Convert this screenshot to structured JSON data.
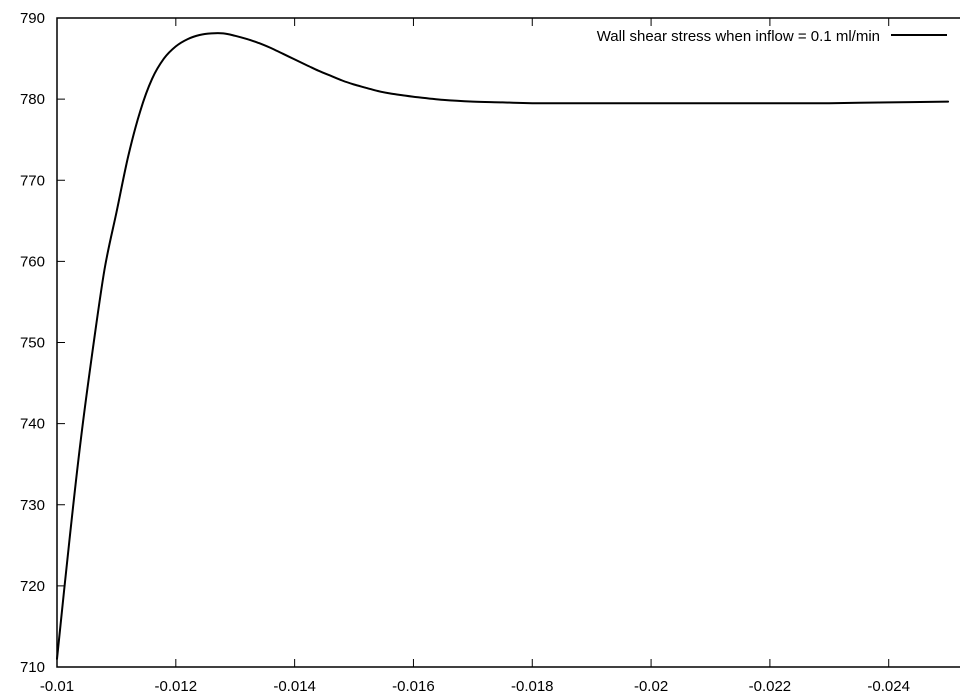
{
  "chart_data": {
    "type": "line",
    "title": "",
    "xlabel": "",
    "ylabel": "",
    "xlim": [
      -0.01,
      -0.0252
    ],
    "ylim": [
      710,
      790
    ],
    "x_ticks": [
      -0.01,
      -0.012,
      -0.014,
      -0.016,
      -0.018,
      -0.02,
      -0.022,
      -0.024
    ],
    "x_tick_labels": [
      "-0.01",
      "-0.012",
      "-0.014",
      "-0.016",
      "-0.018",
      "-0.02",
      "-0.022",
      "-0.024"
    ],
    "y_ticks": [
      710,
      720,
      730,
      740,
      750,
      760,
      770,
      780,
      790
    ],
    "y_tick_labels": [
      "710",
      "720",
      "730",
      "740",
      "750",
      "760",
      "770",
      "780",
      "790"
    ],
    "grid": false,
    "legend_position": "top-right",
    "series": [
      {
        "name": "Wall shear stress when inflow = 0.1 ml/min",
        "color": "#000000",
        "x": [
          -0.01,
          -0.0102,
          -0.0104,
          -0.0106,
          -0.0108,
          -0.011,
          -0.0112,
          -0.0114,
          -0.0116,
          -0.0118,
          -0.012,
          -0.0122,
          -0.0124,
          -0.0126,
          -0.0128,
          -0.013,
          -0.0132,
          -0.0134,
          -0.0136,
          -0.0138,
          -0.014,
          -0.0142,
          -0.0144,
          -0.0146,
          -0.0148,
          -0.015,
          -0.0152,
          -0.0154,
          -0.0156,
          -0.0158,
          -0.016,
          -0.0165,
          -0.017,
          -0.0175,
          -0.018,
          -0.019,
          -0.02,
          -0.021,
          -0.022,
          -0.023,
          -0.024,
          -0.025
        ],
        "y": [
          711,
          725,
          738,
          749,
          759,
          766,
          773,
          778.5,
          782.5,
          785,
          786.5,
          787.4,
          787.9,
          788.1,
          788.1,
          787.8,
          787.4,
          786.9,
          786.3,
          785.6,
          784.9,
          784.2,
          783.5,
          782.9,
          782.3,
          781.8,
          781.4,
          781,
          780.7,
          780.5,
          780.3,
          779.9,
          779.7,
          779.6,
          779.5,
          779.5,
          779.5,
          779.5,
          779.5,
          779.5,
          779.6,
          779.7
        ]
      }
    ]
  }
}
